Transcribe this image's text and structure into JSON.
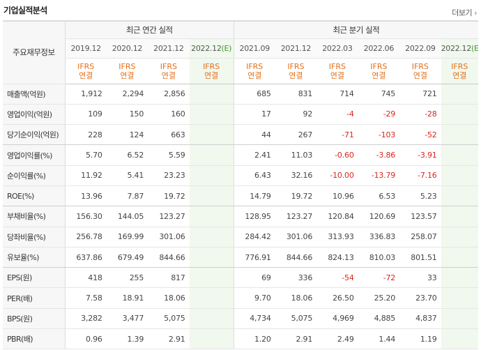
{
  "header": {
    "title": "기업실적분석",
    "more_label": "더보기"
  },
  "table": {
    "label_header": "주요재무정보",
    "group_annual": "최근 연간 실적",
    "group_quarterly": "최근 분기 실적",
    "annual_periods": [
      "2019.12",
      "2020.12",
      "2021.12",
      "2022.12"
    ],
    "quarterly_periods": [
      "2021.09",
      "2021.12",
      "2022.03",
      "2022.06",
      "2022.09",
      "2022.12"
    ],
    "estimate_mark": "(E)",
    "accounting_standard": "IFRS",
    "consolidation": "연결",
    "rows": [
      {
        "label": "매출액(억원)",
        "values": [
          "1,912",
          "2,294",
          "2,856",
          "",
          "685",
          "831",
          "714",
          "745",
          "721",
          ""
        ]
      },
      {
        "label": "영업이익(억원)",
        "values": [
          "109",
          "150",
          "160",
          "",
          "17",
          "92",
          "-4",
          "-29",
          "-28",
          ""
        ]
      },
      {
        "label": "당기순이익(억원)",
        "values": [
          "228",
          "124",
          "663",
          "",
          "44",
          "267",
          "-71",
          "-103",
          "-52",
          ""
        ]
      },
      {
        "label": "영업이익률(%)",
        "values": [
          "5.70",
          "6.52",
          "5.59",
          "",
          "2.41",
          "11.03",
          "-0.60",
          "-3.86",
          "-3.91",
          ""
        ]
      },
      {
        "label": "순이익률(%)",
        "values": [
          "11.92",
          "5.41",
          "23.23",
          "",
          "6.43",
          "32.16",
          "-10.00",
          "-13.79",
          "-7.16",
          ""
        ]
      },
      {
        "label": "ROE(%)",
        "values": [
          "13.96",
          "7.87",
          "19.72",
          "",
          "14.79",
          "19.72",
          "10.96",
          "6.53",
          "5.23",
          ""
        ]
      },
      {
        "label": "부채비율(%)",
        "values": [
          "156.30",
          "144.05",
          "123.27",
          "",
          "128.95",
          "123.27",
          "120.84",
          "120.69",
          "123.57",
          ""
        ]
      },
      {
        "label": "당좌비율(%)",
        "values": [
          "256.78",
          "169.99",
          "301.06",
          "",
          "284.42",
          "301.06",
          "313.93",
          "336.83",
          "258.07",
          ""
        ]
      },
      {
        "label": "유보율(%)",
        "values": [
          "637.86",
          "679.49",
          "844.66",
          "",
          "776.91",
          "844.66",
          "824.13",
          "810.03",
          "801.51",
          ""
        ]
      },
      {
        "label": "EPS(원)",
        "values": [
          "418",
          "255",
          "817",
          "",
          "69",
          "336",
          "-54",
          "-72",
          "33",
          ""
        ]
      },
      {
        "label": "PER(배)",
        "values": [
          "7.58",
          "18.91",
          "18.06",
          "",
          "9.70",
          "18.06",
          "26.50",
          "25.20",
          "23.70",
          ""
        ]
      },
      {
        "label": "BPS(원)",
        "values": [
          "3,282",
          "3,477",
          "5,075",
          "",
          "4,734",
          "5,075",
          "4,969",
          "4,885",
          "4,837",
          ""
        ]
      },
      {
        "label": "PBR(배)",
        "values": [
          "0.96",
          "1.39",
          "2.91",
          "",
          "1.20",
          "2.91",
          "2.49",
          "1.44",
          "1.19",
          ""
        ]
      }
    ]
  }
}
